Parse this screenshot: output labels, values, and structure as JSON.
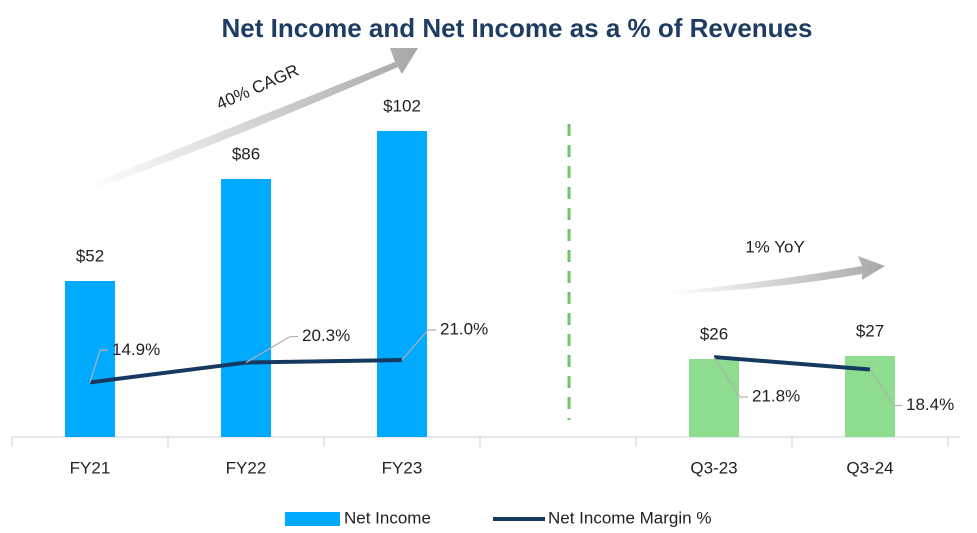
{
  "chart_data": {
    "type": "bar",
    "title": "Net Income and Net Income as a % of Revenues",
    "categories": [
      "FY21",
      "FY22",
      "FY23",
      null,
      "Q3-23",
      "Q3-24"
    ],
    "series": [
      {
        "name": "Net Income",
        "type": "bar",
        "color": "#00aaff",
        "colors": [
          "#00aaff",
          "#00aaff",
          "#00aaff",
          null,
          "#8edc8e",
          "#8edc8e"
        ],
        "values": [
          52,
          86,
          102,
          null,
          26,
          27
        ],
        "value_labels": [
          "$52",
          "$86",
          "$102",
          null,
          "$26",
          "$27"
        ]
      },
      {
        "name": "Net Income Margin %",
        "type": "line",
        "axis": "y2",
        "color": "#163a5f",
        "values": [
          14.9,
          20.3,
          21.0,
          null,
          21.8,
          18.4
        ],
        "value_labels": [
          "14.9%",
          "20.3%",
          "21.0%",
          null,
          "21.8%",
          "18.4%"
        ]
      }
    ],
    "ylim": [
      0,
      110
    ],
    "y2lim": [
      0,
      90
    ],
    "annotations": [
      "40% CAGR",
      "1% YoY"
    ],
    "legend": "bottom"
  }
}
